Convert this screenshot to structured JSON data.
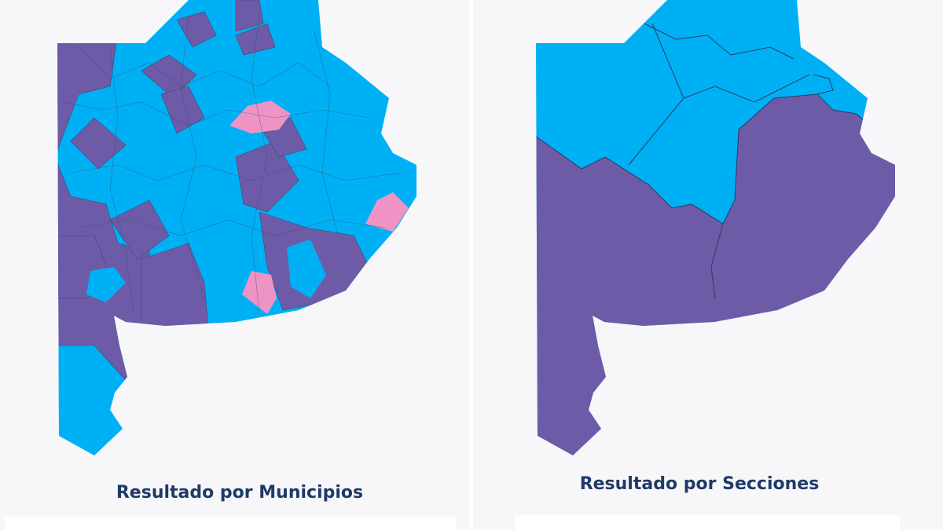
{
  "panels": [
    {
      "caption": "Resultado por Municipios"
    },
    {
      "caption": "Resultado por Secciones"
    }
  ]
}
